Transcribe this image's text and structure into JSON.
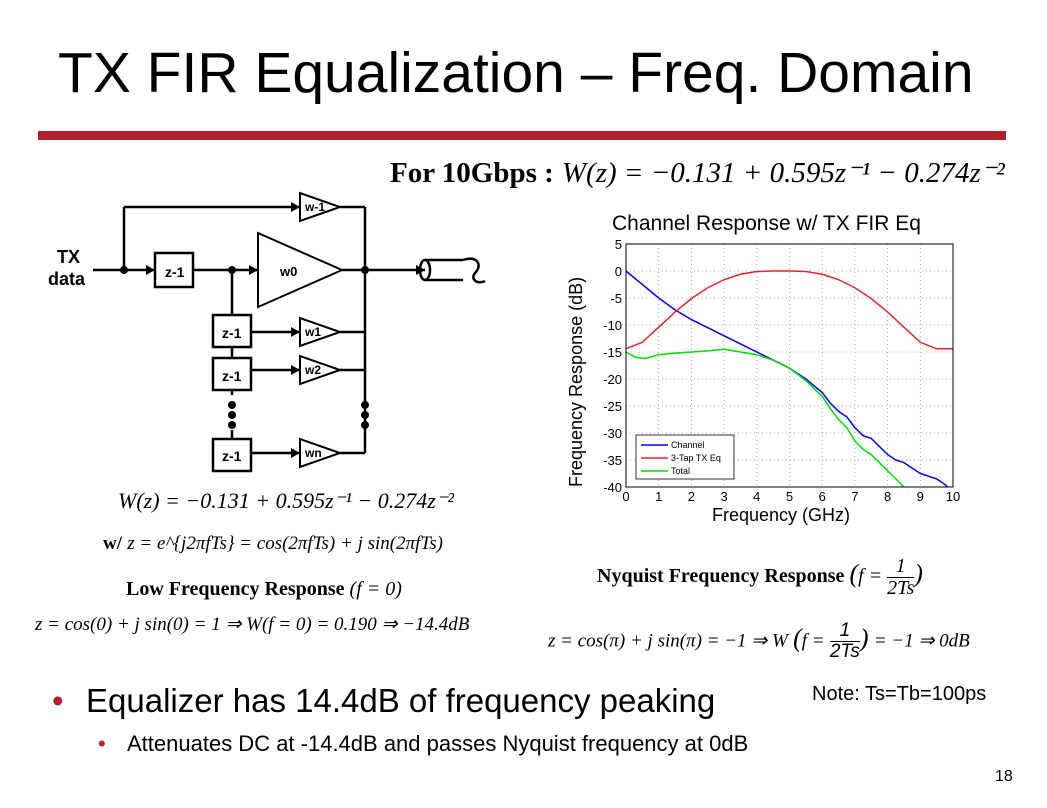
{
  "slide": {
    "title": "TX FIR Equalization – Freq. Domain",
    "accent_color": "#b41f2d",
    "page_number": "18"
  },
  "equations": {
    "top_prefix": "For 10Gbps :",
    "top_eq": "W(z) = −0.131 + 0.595z⁻¹ − 0.274z⁻²",
    "left_eq1": "W(z) = −0.131 + 0.595z⁻¹ − 0.274z⁻²",
    "left_eq2_prefix": "w/",
    "left_eq2": "z = e^{j2πfTs} = cos(2πfTs) + j sin(2πfTs)",
    "low_freq_label": "Low Frequency Response",
    "low_freq_cond": "(f = 0)",
    "low_freq_eq": "z = cos(0) + j sin(0) = 1 ⇒ W(f = 0) = 0.190 ⇒ −14.4dB",
    "nyquist_label": "Nyquist Frequency Response",
    "nyquist_cond_lhs": "f =",
    "nyquist_cond_num": "1",
    "nyquist_cond_den": "2Ts",
    "nyquist_eq_lhs": "z = cos(π) + j sin(π) = −1 ⇒ W",
    "nyquist_eq_f": "f =",
    "nyquist_eq_num": "1",
    "nyquist_eq_den": "2Ts",
    "nyquist_eq_rhs": "= −1 ⇒ 0dB"
  },
  "diagram": {
    "input_label_1": "TX",
    "input_label_2": "data",
    "delay_label": "z-1",
    "taps": [
      "w-1",
      "w0",
      "w1",
      "w2",
      "wn"
    ]
  },
  "bullets": {
    "main": "Equalizer has 14.4dB of frequency peaking",
    "sub": "Attenuates DC at -14.4dB and passes Nyquist frequency at 0dB",
    "note": "Note: Ts=Tb=100ps"
  },
  "chart_data": {
    "type": "line",
    "title": "Channel Response w/ TX FIR Eq",
    "xlabel": "Frequency (GHz)",
    "ylabel": "Frequency Response (dB)",
    "xlim": [
      0,
      10
    ],
    "ylim": [
      -40,
      5
    ],
    "xticks": [
      "0",
      "1",
      "2",
      "3",
      "4",
      "5",
      "6",
      "7",
      "8",
      "9",
      "10"
    ],
    "yticks": [
      "5",
      "0",
      "-5",
      "-10",
      "-15",
      "-20",
      "-25",
      "-30",
      "-35",
      "-40"
    ],
    "grid": true,
    "legend_position": "bottom-left",
    "series": [
      {
        "name": "Channel",
        "color": "#0000ff",
        "x": [
          0,
          0.5,
          1,
          1.5,
          2,
          2.5,
          3,
          3.5,
          4,
          4.5,
          5,
          5.5,
          6,
          6.25,
          6.5,
          6.75,
          7,
          7.25,
          7.5,
          7.75,
          8,
          8.25,
          8.5,
          8.75,
          9,
          9.25,
          9.5,
          9.75,
          10
        ],
        "y": [
          0,
          -2.5,
          -5,
          -7.2,
          -9,
          -10.5,
          -12,
          -13.5,
          -15,
          -16.5,
          -18,
          -20,
          -22.5,
          -24.5,
          -26,
          -27,
          -29,
          -30.5,
          -31,
          -32.5,
          -34,
          -35,
          -35.5,
          -36.5,
          -37.5,
          -38,
          -38.5,
          -39.5,
          -41
        ]
      },
      {
        "name": "3-Tap TX Eq",
        "color": "#e8232a",
        "x": [
          0,
          0.5,
          1,
          1.5,
          2,
          2.5,
          3,
          3.5,
          4,
          4.5,
          5,
          5.5,
          6,
          6.5,
          7,
          7.5,
          8,
          8.5,
          9,
          9.5,
          10
        ],
        "y": [
          -14.4,
          -13.2,
          -10.4,
          -7.6,
          -5.1,
          -3.1,
          -1.6,
          -0.6,
          -0.1,
          0,
          0,
          -0.1,
          -0.6,
          -1.6,
          -3.1,
          -5.1,
          -7.6,
          -10.4,
          -13.2,
          -14.4,
          -14.4
        ]
      },
      {
        "name": "Total",
        "color": "#00dd00",
        "x": [
          0,
          0.3,
          0.6,
          1,
          1.5,
          2,
          2.5,
          3,
          3.5,
          4,
          4.5,
          5,
          5.5,
          6,
          6.25,
          6.5,
          6.75,
          7,
          7.25,
          7.5,
          7.75,
          8,
          8.25,
          8.5
        ],
        "y": [
          -15,
          -16,
          -16.2,
          -15.5,
          -15.2,
          -15,
          -14.8,
          -14.5,
          -15,
          -15.5,
          -16.5,
          -18,
          -20.3,
          -23.2,
          -25.5,
          -27.5,
          -29,
          -31.5,
          -33,
          -34,
          -35.5,
          -37,
          -38.5,
          -40
        ]
      }
    ]
  }
}
